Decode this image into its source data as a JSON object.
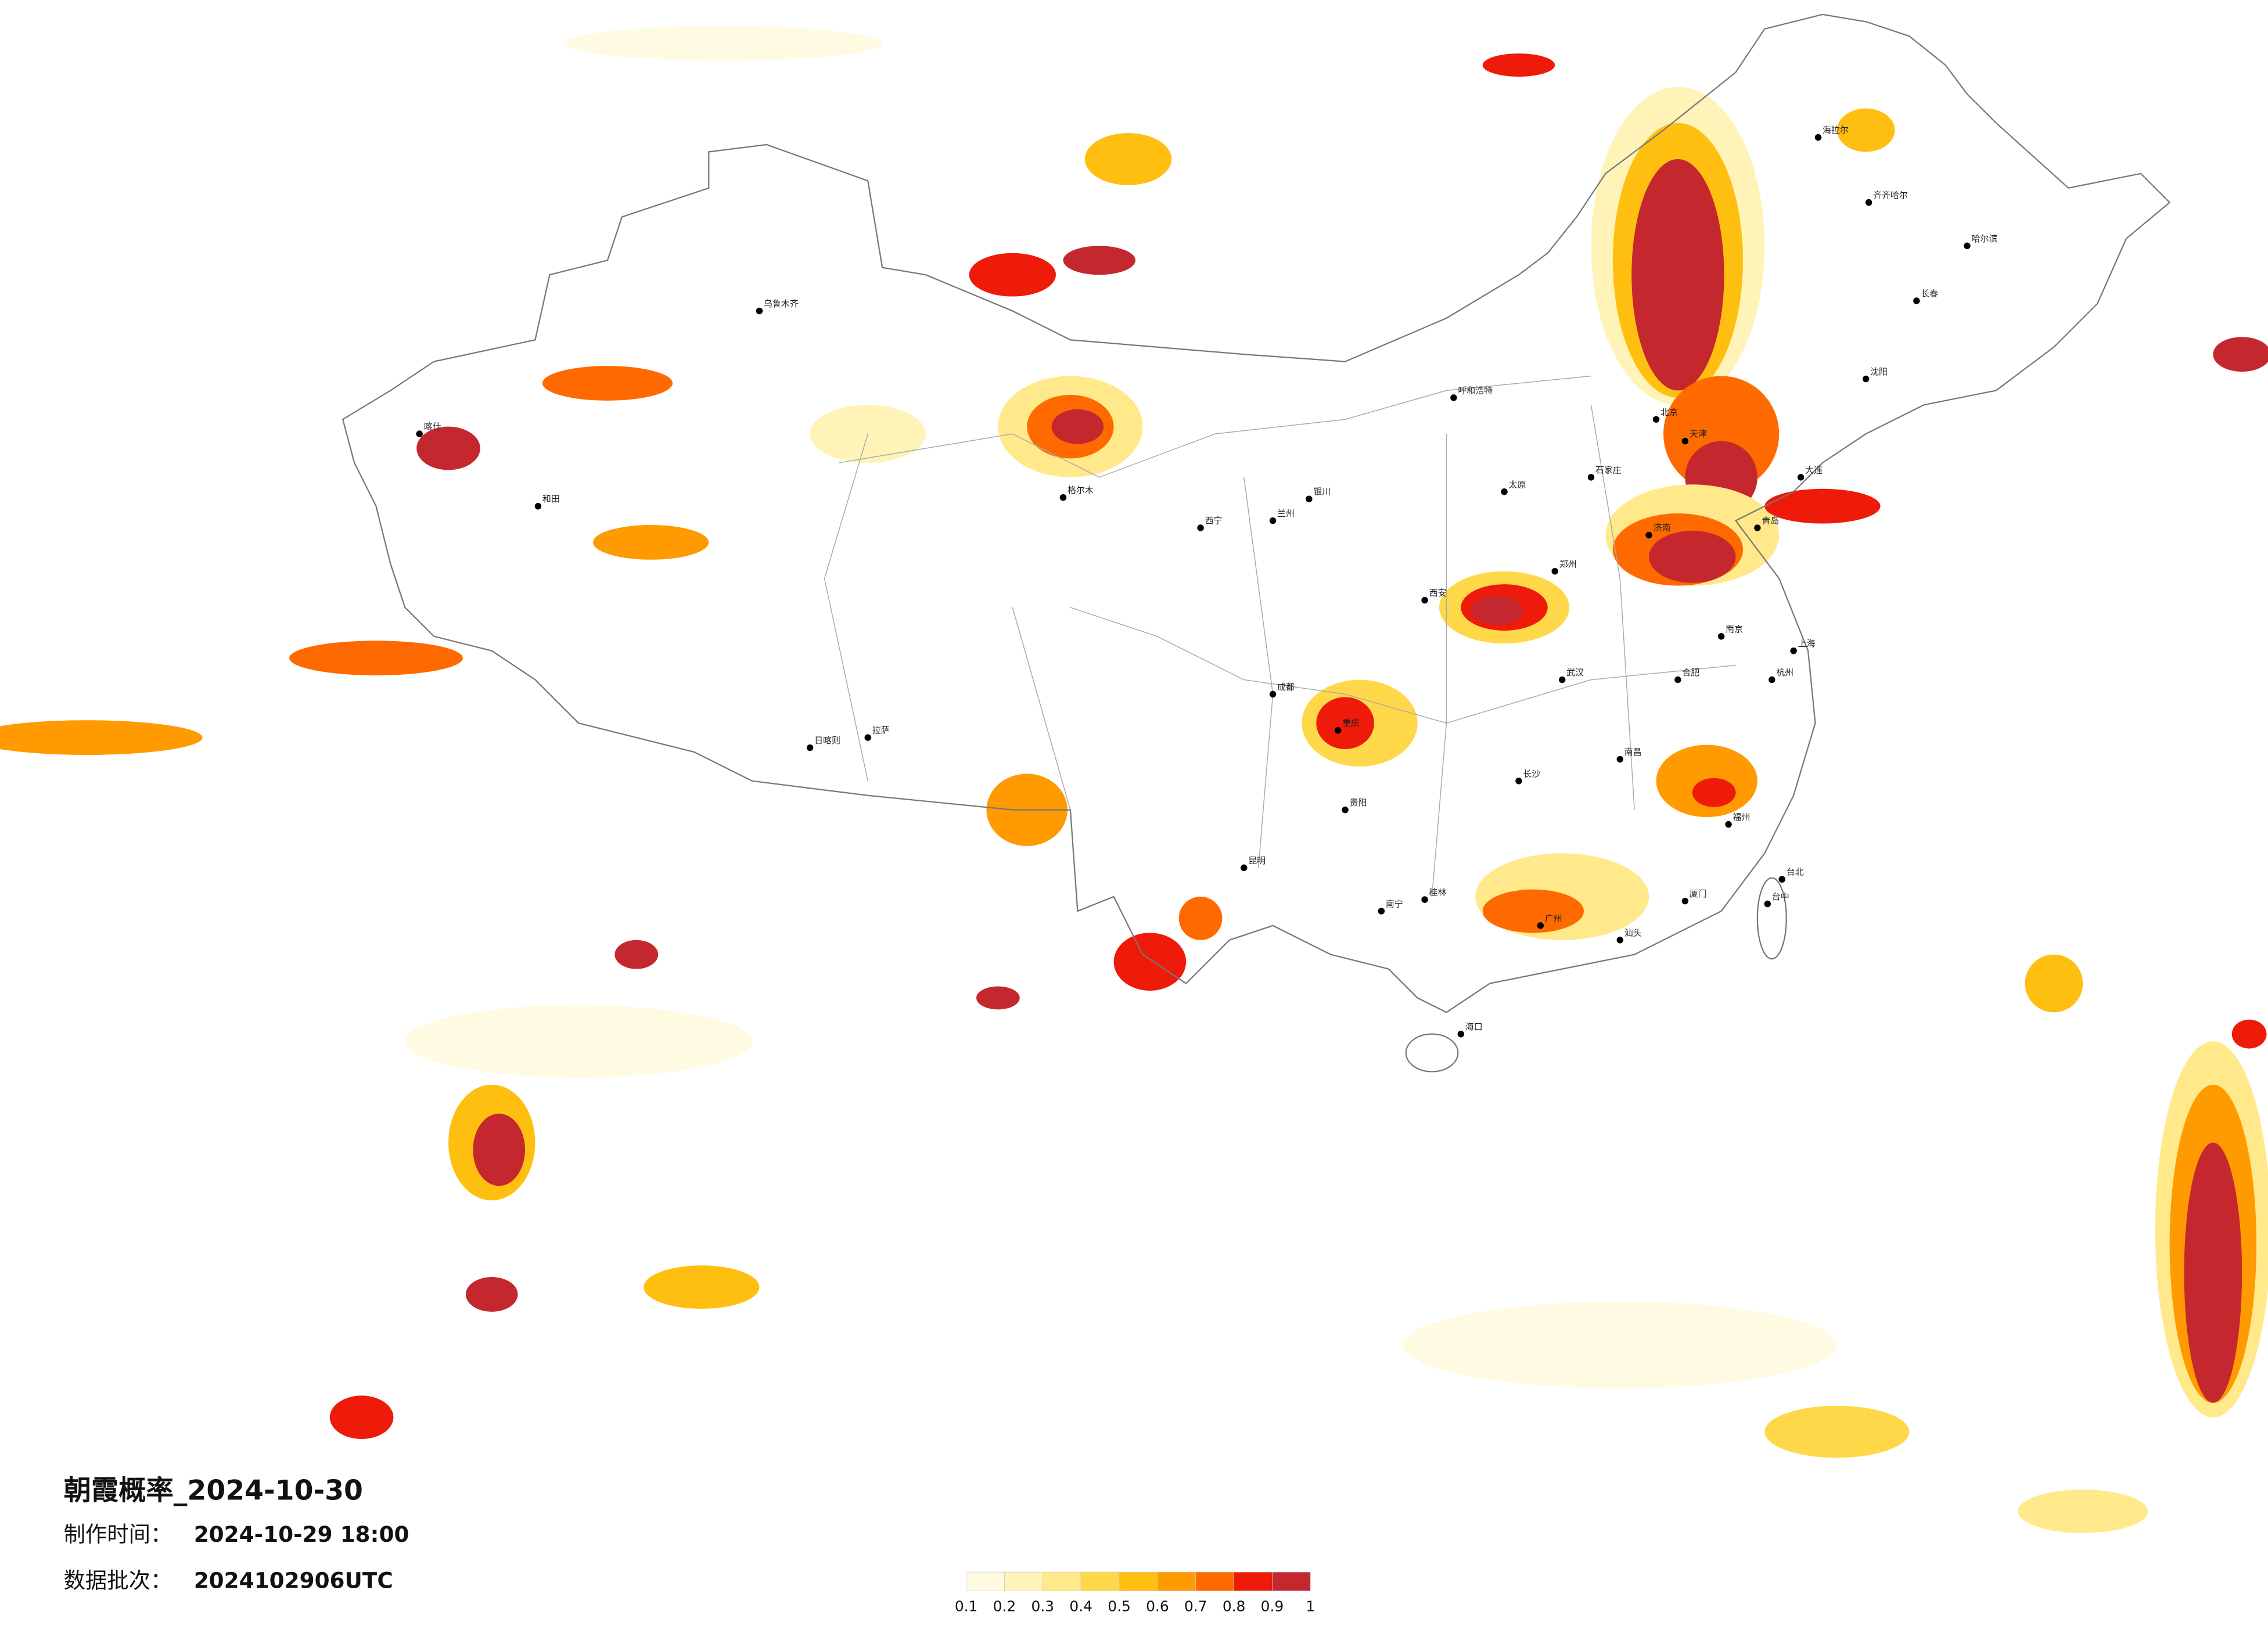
{
  "title": "朝霞概率_2024-10-30",
  "info": [
    {
      "label": "制作时间：",
      "value": "2024-10-29 18:00"
    },
    {
      "label": "数据批次：",
      "value": "2024102906UTC"
    }
  ],
  "legend": {
    "colors": [
      "#fffbe3",
      "#fff3b8",
      "#ffe98a",
      "#ffd84a",
      "#ffbf10",
      "#ff9a00",
      "#ff6a00",
      "#ee1a0a",
      "#c4282e"
    ],
    "ticks": [
      0.1,
      0.2,
      0.3,
      0.4,
      0.5,
      0.6,
      0.7,
      0.8,
      0.9,
      1
    ]
  },
  "cities": [
    "哈尔滨",
    "长春",
    "沈阳",
    "北京",
    "天津",
    "石家庄",
    "太原",
    "呼和浩特",
    "济南",
    "郑州",
    "西安",
    "兰州",
    "西宁",
    "银川",
    "乌鲁木齐",
    "拉萨",
    "成都",
    "重庆",
    "贵阳",
    "昆明",
    "南宁",
    "广州",
    "海口",
    "长沙",
    "武汉",
    "南昌",
    "福州",
    "杭州",
    "上海",
    "南京",
    "合肥",
    "台北",
    "大连",
    "青岛",
    "齐齐哈尔",
    "海拉尔",
    "喀什",
    "和田",
    "日喀则",
    "格尔木",
    "台中",
    "厦门",
    "汕头",
    "桂林"
  ]
}
